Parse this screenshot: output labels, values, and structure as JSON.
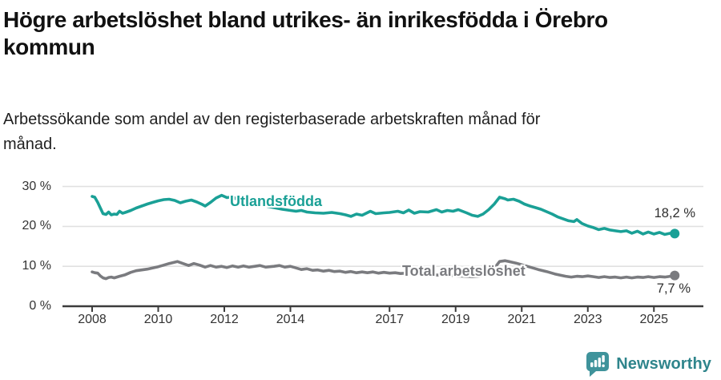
{
  "header": {
    "title": "Högre arbetslöshet bland utrikes- än inrikesfödda i Örebro kommun",
    "subtitle": "Arbetssökande som andel av den registerbaserade arbetskraften månad för månad."
  },
  "branding": {
    "name": "Newsworthy",
    "logo_icon": "bar-chart-speech-bubble",
    "color": "#2f858c",
    "icon_color": "#3f939b"
  },
  "chart_data": {
    "type": "line",
    "title": "Högre arbetslöshet bland utrikes- än inrikesfödda i Örebro kommun",
    "subtitle": "Arbetssökande som andel av den registerbaserade arbetskraften månad för månad.",
    "unit": "%",
    "grid": "horizontal",
    "legend_position": "inline-labels",
    "xlim": [
      2008,
      2025.7
    ],
    "ylim": [
      0,
      30
    ],
    "x_ticks": [
      {
        "x": 2008,
        "label": "2008"
      },
      {
        "x": 2010,
        "label": "2010"
      },
      {
        "x": 2012,
        "label": "2012"
      },
      {
        "x": 2014,
        "label": "2014"
      },
      {
        "x": 2017,
        "label": "2017"
      },
      {
        "x": 2019,
        "label": "2019"
      },
      {
        "x": 2021,
        "label": "2021"
      },
      {
        "x": 2023,
        "label": "2023"
      },
      {
        "x": 2025,
        "label": "2025"
      }
    ],
    "y_ticks": [
      {
        "value": 0,
        "label": "0 %"
      },
      {
        "value": 10,
        "label": "10 %"
      },
      {
        "value": 20,
        "label": "20 %"
      },
      {
        "value": 30,
        "label": "30 %"
      }
    ],
    "series": [
      {
        "name": "Utlandsfödda",
        "color": "#1aa096",
        "end_label": "18,2 %",
        "end_value": 18.2,
        "points": [
          [
            2008.0,
            27.5
          ],
          [
            2008.08,
            27.3
          ],
          [
            2008.17,
            26.0
          ],
          [
            2008.25,
            24.6
          ],
          [
            2008.33,
            23.2
          ],
          [
            2008.42,
            23.0
          ],
          [
            2008.5,
            23.6
          ],
          [
            2008.58,
            22.9
          ],
          [
            2008.67,
            23.1
          ],
          [
            2008.75,
            23.0
          ],
          [
            2008.83,
            23.8
          ],
          [
            2008.92,
            23.3
          ],
          [
            2009.0,
            23.5
          ],
          [
            2009.17,
            24.0
          ],
          [
            2009.33,
            24.6
          ],
          [
            2009.5,
            25.1
          ],
          [
            2009.67,
            25.6
          ],
          [
            2009.83,
            26.0
          ],
          [
            2010.0,
            26.4
          ],
          [
            2010.17,
            26.7
          ],
          [
            2010.33,
            26.8
          ],
          [
            2010.5,
            26.5
          ],
          [
            2010.67,
            25.9
          ],
          [
            2010.83,
            26.3
          ],
          [
            2011.0,
            26.6
          ],
          [
            2011.17,
            26.1
          ],
          [
            2011.33,
            25.5
          ],
          [
            2011.42,
            25.1
          ],
          [
            2011.58,
            26.0
          ],
          [
            2011.75,
            27.1
          ],
          [
            2011.92,
            27.8
          ],
          [
            2012.08,
            27.2
          ],
          [
            2012.25,
            27.4
          ],
          [
            2012.42,
            26.6
          ],
          [
            2012.58,
            26.2
          ],
          [
            2012.75,
            25.9
          ],
          [
            2012.92,
            25.6
          ],
          [
            2013.08,
            25.4
          ],
          [
            2013.25,
            25.1
          ],
          [
            2013.5,
            24.7
          ],
          [
            2013.75,
            24.3
          ],
          [
            2014.0,
            24.0
          ],
          [
            2014.17,
            23.8
          ],
          [
            2014.33,
            24.0
          ],
          [
            2014.5,
            23.6
          ],
          [
            2014.75,
            23.4
          ],
          [
            2015.0,
            23.3
          ],
          [
            2015.25,
            23.5
          ],
          [
            2015.5,
            23.2
          ],
          [
            2015.67,
            22.9
          ],
          [
            2015.83,
            22.5
          ],
          [
            2016.0,
            23.1
          ],
          [
            2016.17,
            22.8
          ],
          [
            2016.42,
            23.8
          ],
          [
            2016.58,
            23.2
          ],
          [
            2016.83,
            23.4
          ],
          [
            2017.0,
            23.5
          ],
          [
            2017.25,
            23.8
          ],
          [
            2017.42,
            23.4
          ],
          [
            2017.58,
            24.1
          ],
          [
            2017.75,
            23.3
          ],
          [
            2017.92,
            23.7
          ],
          [
            2018.17,
            23.6
          ],
          [
            2018.42,
            24.2
          ],
          [
            2018.58,
            23.6
          ],
          [
            2018.75,
            24.0
          ],
          [
            2018.92,
            23.8
          ],
          [
            2019.08,
            24.2
          ],
          [
            2019.33,
            23.4
          ],
          [
            2019.5,
            22.8
          ],
          [
            2019.67,
            22.5
          ],
          [
            2019.83,
            23.1
          ],
          [
            2020.0,
            24.2
          ],
          [
            2020.17,
            25.6
          ],
          [
            2020.33,
            27.3
          ],
          [
            2020.5,
            26.9
          ],
          [
            2020.58,
            26.6
          ],
          [
            2020.75,
            26.8
          ],
          [
            2020.92,
            26.3
          ],
          [
            2021.08,
            25.6
          ],
          [
            2021.25,
            25.1
          ],
          [
            2021.42,
            24.7
          ],
          [
            2021.58,
            24.3
          ],
          [
            2021.75,
            23.7
          ],
          [
            2021.92,
            23.1
          ],
          [
            2022.08,
            22.4
          ],
          [
            2022.25,
            21.9
          ],
          [
            2022.42,
            21.4
          ],
          [
            2022.58,
            21.2
          ],
          [
            2022.67,
            21.7
          ],
          [
            2022.83,
            20.7
          ],
          [
            2023.0,
            20.1
          ],
          [
            2023.17,
            19.7
          ],
          [
            2023.33,
            19.2
          ],
          [
            2023.5,
            19.5
          ],
          [
            2023.67,
            19.1
          ],
          [
            2023.83,
            18.9
          ],
          [
            2024.0,
            18.7
          ],
          [
            2024.17,
            18.9
          ],
          [
            2024.33,
            18.3
          ],
          [
            2024.5,
            18.8
          ],
          [
            2024.67,
            18.1
          ],
          [
            2024.83,
            18.6
          ],
          [
            2025.0,
            18.1
          ],
          [
            2025.17,
            18.5
          ],
          [
            2025.33,
            18.0
          ],
          [
            2025.5,
            18.3
          ],
          [
            2025.63,
            18.2
          ]
        ]
      },
      {
        "name": "Total arbetslöshet",
        "color": "#7a7b7f",
        "end_label": "7,7 %",
        "end_value": 7.7,
        "points": [
          [
            2008.0,
            8.6
          ],
          [
            2008.08,
            8.4
          ],
          [
            2008.17,
            8.3
          ],
          [
            2008.25,
            7.6
          ],
          [
            2008.33,
            7.1
          ],
          [
            2008.42,
            6.9
          ],
          [
            2008.5,
            7.2
          ],
          [
            2008.58,
            7.3
          ],
          [
            2008.67,
            7.1
          ],
          [
            2008.75,
            7.3
          ],
          [
            2008.83,
            7.5
          ],
          [
            2009.0,
            7.9
          ],
          [
            2009.17,
            8.5
          ],
          [
            2009.33,
            8.9
          ],
          [
            2009.5,
            9.1
          ],
          [
            2009.67,
            9.3
          ],
          [
            2009.83,
            9.6
          ],
          [
            2010.0,
            9.9
          ],
          [
            2010.17,
            10.3
          ],
          [
            2010.33,
            10.7
          ],
          [
            2010.58,
            11.2
          ],
          [
            2010.75,
            10.7
          ],
          [
            2010.92,
            10.2
          ],
          [
            2011.08,
            10.7
          ],
          [
            2011.25,
            10.3
          ],
          [
            2011.42,
            9.8
          ],
          [
            2011.58,
            10.2
          ],
          [
            2011.75,
            9.8
          ],
          [
            2011.92,
            10.0
          ],
          [
            2012.08,
            9.7
          ],
          [
            2012.25,
            10.1
          ],
          [
            2012.42,
            9.8
          ],
          [
            2012.58,
            10.1
          ],
          [
            2012.75,
            9.8
          ],
          [
            2012.92,
            10.0
          ],
          [
            2013.08,
            10.2
          ],
          [
            2013.25,
            9.8
          ],
          [
            2013.5,
            10.0
          ],
          [
            2013.67,
            10.2
          ],
          [
            2013.83,
            9.8
          ],
          [
            2014.0,
            10.0
          ],
          [
            2014.17,
            9.6
          ],
          [
            2014.33,
            9.2
          ],
          [
            2014.5,
            9.4
          ],
          [
            2014.67,
            9.0
          ],
          [
            2014.83,
            9.1
          ],
          [
            2015.0,
            8.8
          ],
          [
            2015.17,
            9.0
          ],
          [
            2015.33,
            8.7
          ],
          [
            2015.5,
            8.8
          ],
          [
            2015.67,
            8.5
          ],
          [
            2015.83,
            8.7
          ],
          [
            2016.0,
            8.4
          ],
          [
            2016.17,
            8.6
          ],
          [
            2016.33,
            8.4
          ],
          [
            2016.5,
            8.6
          ],
          [
            2016.67,
            8.3
          ],
          [
            2016.83,
            8.5
          ],
          [
            2017.0,
            8.3
          ],
          [
            2017.17,
            8.4
          ],
          [
            2017.33,
            8.2
          ],
          [
            2017.5,
            8.3
          ],
          [
            2017.67,
            8.1
          ],
          [
            2017.83,
            8.2
          ],
          [
            2018.0,
            8.0
          ],
          [
            2018.25,
            7.9
          ],
          [
            2018.5,
            7.8
          ],
          [
            2018.75,
            7.7
          ],
          [
            2019.0,
            7.6
          ],
          [
            2019.25,
            7.5
          ],
          [
            2019.5,
            7.4
          ],
          [
            2019.75,
            7.6
          ],
          [
            2020.0,
            8.0
          ],
          [
            2020.17,
            9.5
          ],
          [
            2020.33,
            11.2
          ],
          [
            2020.5,
            11.4
          ],
          [
            2020.67,
            11.1
          ],
          [
            2020.83,
            10.8
          ],
          [
            2021.0,
            10.4
          ],
          [
            2021.25,
            9.8
          ],
          [
            2021.5,
            9.2
          ],
          [
            2021.75,
            8.7
          ],
          [
            2022.0,
            8.1
          ],
          [
            2022.17,
            7.8
          ],
          [
            2022.33,
            7.5
          ],
          [
            2022.5,
            7.3
          ],
          [
            2022.67,
            7.5
          ],
          [
            2022.83,
            7.4
          ],
          [
            2023.0,
            7.6
          ],
          [
            2023.17,
            7.4
          ],
          [
            2023.33,
            7.2
          ],
          [
            2023.5,
            7.4
          ],
          [
            2023.67,
            7.2
          ],
          [
            2023.83,
            7.3
          ],
          [
            2024.0,
            7.1
          ],
          [
            2024.17,
            7.3
          ],
          [
            2024.33,
            7.1
          ],
          [
            2024.5,
            7.3
          ],
          [
            2024.67,
            7.2
          ],
          [
            2024.83,
            7.4
          ],
          [
            2025.0,
            7.2
          ],
          [
            2025.17,
            7.4
          ],
          [
            2025.33,
            7.3
          ],
          [
            2025.5,
            7.5
          ],
          [
            2025.63,
            7.7
          ]
        ]
      }
    ],
    "style": {
      "grid_color": "#e1e1e1",
      "axis_color": "#3c3c3c",
      "tick_text_color": "#333333",
      "value_label_color": "#2e2e2e"
    }
  }
}
